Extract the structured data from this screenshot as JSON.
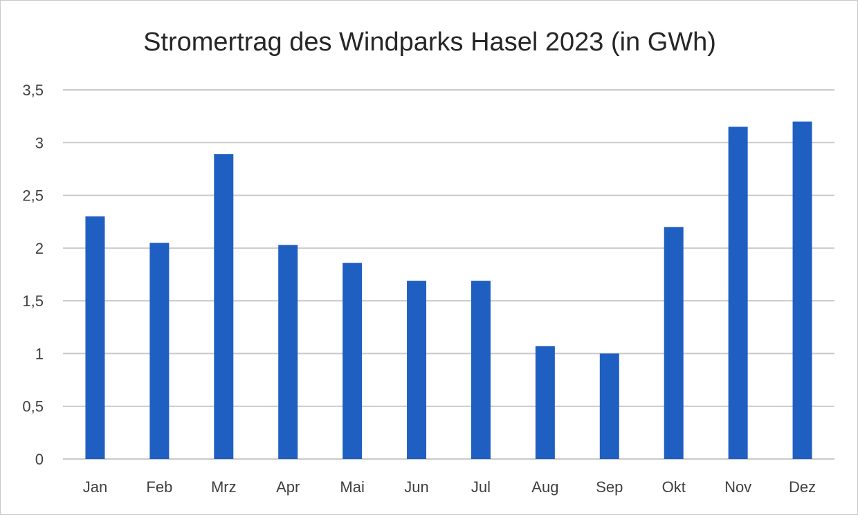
{
  "chart_data": {
    "type": "bar",
    "title": "Stromertrag des Windparks Hasel 2023 (in GWh)",
    "categories": [
      "Jan",
      "Feb",
      "Mrz",
      "Apr",
      "Mai",
      "Jun",
      "Jul",
      "Aug",
      "Sep",
      "Okt",
      "Nov",
      "Dez"
    ],
    "values": [
      2.3,
      2.05,
      2.89,
      2.03,
      1.86,
      1.69,
      1.69,
      1.07,
      1.0,
      2.2,
      3.15,
      3.2
    ],
    "ylim": [
      0,
      3.5
    ],
    "yticks": [
      "0",
      "0,5",
      "1",
      "1,5",
      "2",
      "2,5",
      "3",
      "3,5"
    ],
    "ytick_values": [
      0,
      0.5,
      1,
      1.5,
      2,
      2.5,
      3,
      3.5
    ],
    "grid": true,
    "legend": "none",
    "colors": {
      "bar": "#1f5fc2",
      "grid": "#c9c9c9",
      "text": "#404040"
    }
  }
}
